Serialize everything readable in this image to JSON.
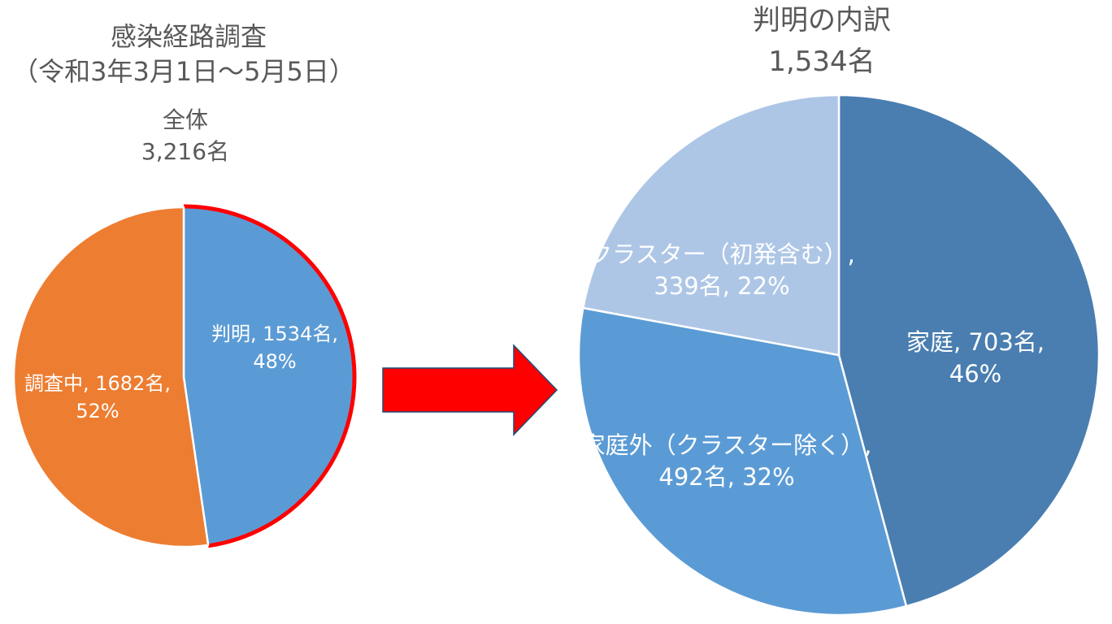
{
  "header": {
    "survey_title": "感染経路調査",
    "survey_period": "（令和3年3月1日～5月5日）"
  },
  "colors": {
    "investigating": "#ED7D31",
    "identified": "#5B9BD5",
    "highlight_outline": "#FF0000",
    "household": "#4A7EB0",
    "outside_household": "#5B9BD5",
    "cluster": "#AEC6E6",
    "arrow": "#FF0000",
    "arrow_outline": "#1F4E79"
  },
  "chart_data": [
    {
      "type": "pie",
      "title": "全体",
      "subtitle": "3,216名",
      "total": 3216,
      "slices": [
        {
          "key": "identified",
          "category": "判明",
          "count_text": "1534名",
          "value": 1534,
          "percent": 48,
          "label_line1": "判明, 1534名,",
          "label_line2": "48%"
        },
        {
          "key": "investigating",
          "category": "調査中",
          "count_text": "1682名",
          "value": 1682,
          "percent": 52,
          "label_line1": "調査中, 1682名,",
          "label_line2": "52%"
        }
      ]
    },
    {
      "type": "pie",
      "title": "判明の内訳",
      "subtitle": "1,534名",
      "total": 1534,
      "slices": [
        {
          "key": "household",
          "category": "家庭",
          "count_text": "703名",
          "value": 703,
          "percent": 46,
          "label_line1": "家庭, 703名,",
          "label_line2": "46%"
        },
        {
          "key": "outside_household",
          "category": "家庭外（クラスター除く）",
          "count_text": "492名",
          "value": 492,
          "percent": 32,
          "label_line1": "家庭外（クラスター除く）,",
          "label_line2": "492名, 32%"
        },
        {
          "key": "cluster",
          "category": "クラスター（初発含む）",
          "count_text": "339名",
          "value": 339,
          "percent": 22,
          "label_line1": "クラスター（初発含む）,",
          "label_line2": "339名, 22%"
        }
      ]
    }
  ]
}
